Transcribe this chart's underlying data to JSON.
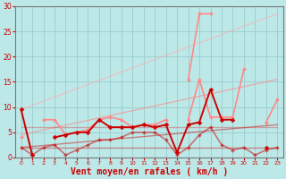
{
  "x": [
    0,
    1,
    2,
    3,
    4,
    5,
    6,
    7,
    8,
    9,
    10,
    11,
    12,
    13,
    14,
    15,
    16,
    17,
    18,
    19,
    20,
    21,
    22,
    23
  ],
  "series": [
    {
      "name": "dark_main",
      "values": [
        9.5,
        0.5,
        null,
        4.0,
        4.5,
        5.0,
        5.0,
        7.5,
        6.0,
        6.0,
        6.0,
        6.5,
        6.0,
        6.5,
        1.0,
        6.5,
        7.0,
        13.5,
        7.5,
        7.5,
        null,
        null,
        2.0,
        null
      ],
      "color": "#cc0000",
      "lw": 1.4,
      "marker": "D",
      "markersize": 2.5,
      "zorder": 10
    },
    {
      "name": "dark_low",
      "values": [
        2.0,
        0.5,
        2.0,
        2.5,
        0.5,
        1.5,
        2.5,
        3.5,
        3.5,
        4.0,
        5.0,
        5.0,
        5.0,
        3.5,
        0.5,
        2.0,
        4.5,
        6.0,
        2.5,
        1.5,
        2.0,
        0.5,
        1.5,
        2.0
      ],
      "color": "#cc0000",
      "lw": 1.2,
      "marker": "D",
      "markersize": 2.0,
      "alpha": 0.5,
      "zorder": 8
    },
    {
      "name": "pink_mid",
      "values": [
        4.0,
        null,
        7.5,
        7.5,
        4.5,
        5.0,
        5.5,
        7.5,
        8.0,
        7.5,
        6.0,
        6.5,
        6.5,
        7.5,
        null,
        7.5,
        15.5,
        8.0,
        8.0,
        8.0,
        17.5,
        null,
        7.0,
        11.5
      ],
      "color": "#ff8888",
      "lw": 1.2,
      "marker": "D",
      "markersize": 2.0,
      "zorder": 6
    },
    {
      "name": "pink_high",
      "values": [
        null,
        null,
        null,
        null,
        null,
        null,
        null,
        null,
        null,
        null,
        null,
        null,
        null,
        null,
        null,
        15.5,
        28.5,
        28.5,
        null,
        null,
        null,
        null,
        null,
        null
      ],
      "color": "#ff8888",
      "lw": 1.2,
      "marker": "D",
      "markersize": 2.0,
      "zorder": 6
    },
    {
      "name": "flat_dark",
      "values": [
        2.0,
        2.0,
        2.0,
        2.0,
        2.0,
        2.0,
        2.0,
        2.0,
        2.0,
        2.0,
        2.0,
        2.0,
        2.0,
        2.0,
        2.0,
        2.0,
        2.0,
        2.0,
        2.0,
        2.0,
        2.0,
        2.0,
        2.0,
        2.0
      ],
      "color": "#cc0000",
      "lw": 1.0,
      "marker": null,
      "markersize": 0,
      "alpha": 0.4,
      "zorder": 5
    },
    {
      "name": "flat_mid",
      "values": [
        6.0,
        6.0,
        6.0,
        6.0,
        6.0,
        6.0,
        6.0,
        6.0,
        6.0,
        6.0,
        6.0,
        6.0,
        6.0,
        6.0,
        6.0,
        6.0,
        6.0,
        6.0,
        6.0,
        6.0,
        6.0,
        6.0,
        6.0,
        6.0
      ],
      "color": "#cc4444",
      "lw": 1.0,
      "marker": null,
      "markersize": 0,
      "alpha": 0.4,
      "zorder": 5
    }
  ],
  "trend_lines": [
    {
      "x0": 0,
      "y0": 2.0,
      "x1": 23,
      "y1": 6.5,
      "color": "#cc0000",
      "lw": 1.0,
      "alpha": 0.45
    },
    {
      "x0": 0,
      "y0": 4.5,
      "x1": 23,
      "y1": 15.5,
      "color": "#ff8888",
      "lw": 1.0,
      "alpha": 0.6
    },
    {
      "x0": 0,
      "y0": 9.5,
      "x1": 23,
      "y1": 28.5,
      "color": "#ffaaaa",
      "lw": 1.0,
      "alpha": 0.55
    }
  ],
  "xlim": [
    -0.5,
    23.5
  ],
  "ylim": [
    0,
    30
  ],
  "xticks": [
    0,
    1,
    2,
    3,
    4,
    5,
    6,
    7,
    8,
    9,
    10,
    11,
    12,
    13,
    14,
    15,
    16,
    17,
    18,
    19,
    20,
    21,
    22,
    23
  ],
  "yticks": [
    0,
    5,
    10,
    15,
    20,
    25,
    30
  ],
  "xlabel": "Vent moyen/en rafales ( km/h )",
  "bg_color": "#bde8e8",
  "grid_color": "#99cccc",
  "tick_label_color": "#cc0000",
  "xlabel_color": "#cc0000",
  "xlabel_fontsize": 7.0,
  "tick_fontsize_x": 4.5,
  "tick_fontsize_y": 5.5
}
